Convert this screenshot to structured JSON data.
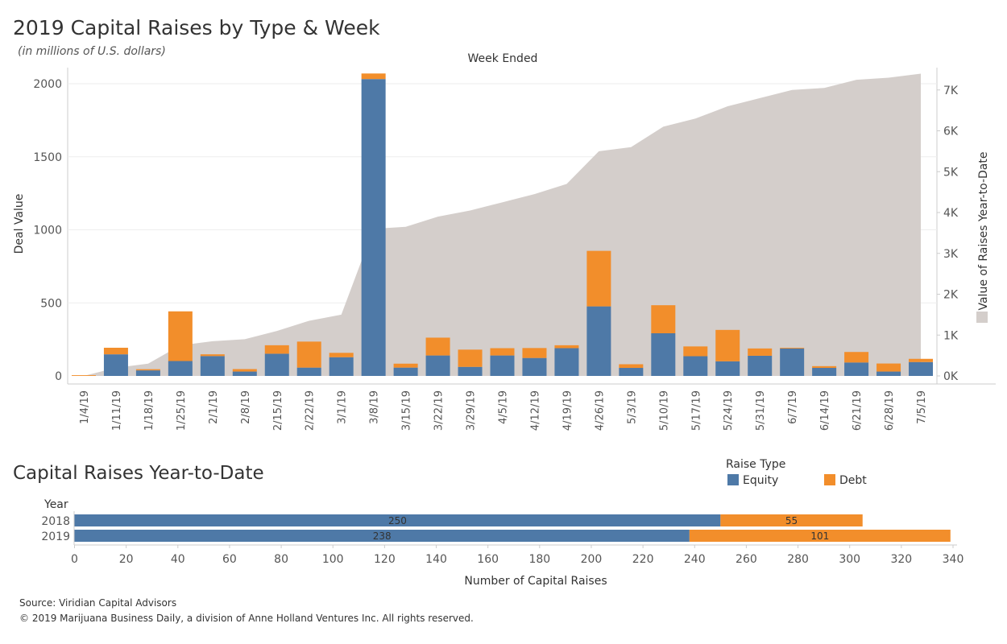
{
  "header": {
    "title": "2019 Capital Raises by Type & Week",
    "subtitle": "(in millions of U.S. dollars)",
    "section2_title": "Capital Raises Year-to-Date"
  },
  "footer": {
    "source": "Source: Viridian Capital Advisors",
    "copyright": "© 2019 Marijuana Business Daily, a division of Anne Holland Ventures Inc. All rights reserved."
  },
  "legend": {
    "title": "Raise Type",
    "items": [
      {
        "label": "Equity",
        "color": "#4e79a7"
      },
      {
        "label": "Debt",
        "color": "#f28e2b"
      }
    ]
  },
  "colors": {
    "equity": "#4e79a7",
    "debt": "#f28e2b",
    "ytd_area": "#d4cecb",
    "grid": "#eeeeee",
    "axis": "#cccccc"
  },
  "chart_data": [
    {
      "type": "bar",
      "stacked": true,
      "title": "2019 Capital Raises by Type & Week",
      "top_label": "Week Ended",
      "xlabel": "",
      "ylabel": "Deal Value",
      "y2label": "Value of Raises Year-to-Date",
      "ylim": [
        0,
        2100
      ],
      "y_ticks": [
        {
          "value": 0,
          "label": "0"
        },
        {
          "value": 500,
          "label": "500"
        },
        {
          "value": 1000,
          "label": "1000"
        },
        {
          "value": 1500,
          "label": "1500"
        },
        {
          "value": 2000,
          "label": "2000"
        }
      ],
      "y2lim": [
        0,
        7500
      ],
      "y2_ticks": [
        {
          "value": 0,
          "label": "0K"
        },
        {
          "value": 1000,
          "label": "1K"
        },
        {
          "value": 2000,
          "label": "2K"
        },
        {
          "value": 3000,
          "label": "3K"
        },
        {
          "value": 4000,
          "label": "4K"
        },
        {
          "value": 5000,
          "label": "5K"
        },
        {
          "value": 6000,
          "label": "6K"
        },
        {
          "value": 7000,
          "label": "7K"
        }
      ],
      "categories": [
        "1/4/19",
        "1/11/19",
        "1/18/19",
        "1/25/19",
        "2/1/19",
        "2/8/19",
        "2/15/19",
        "2/22/19",
        "3/1/19",
        "3/8/19",
        "3/15/19",
        "3/22/19",
        "3/29/19",
        "4/5/19",
        "4/12/19",
        "4/19/19",
        "4/26/19",
        "5/3/19",
        "5/10/19",
        "5/17/19",
        "5/24/19",
        "5/31/19",
        "6/7/19",
        "6/14/19",
        "6/21/19",
        "6/28/19",
        "7/5/19"
      ],
      "series": [
        {
          "name": "Equity",
          "color": "#4e79a7",
          "values": [
            0,
            148,
            38,
            102,
            136,
            30,
            152,
            57,
            128,
            2032,
            57,
            140,
            62,
            140,
            123,
            190,
            476,
            55,
            292,
            135,
            100,
            138,
            188,
            55,
            92,
            30,
            95
          ]
        },
        {
          "name": "Debt",
          "color": "#f28e2b",
          "values": [
            5,
            45,
            8,
            340,
            12,
            17,
            58,
            178,
            30,
            38,
            27,
            122,
            118,
            50,
            68,
            20,
            380,
            25,
            192,
            67,
            215,
            50,
            5,
            12,
            72,
            55,
            22
          ]
        },
        {
          "name": "Value of Raises Year-to-Date",
          "type": "area",
          "axis": "y2",
          "color": "#d4cecb",
          "values": [
            0,
            200,
            300,
            750,
            850,
            900,
            1100,
            1350,
            1500,
            3600,
            3650,
            3900,
            4050,
            4250,
            4450,
            4700,
            5500,
            5600,
            6100,
            6300,
            6600,
            6800,
            7000,
            7050,
            7250,
            7300,
            7400
          ]
        }
      ]
    },
    {
      "type": "bar",
      "orientation": "horizontal",
      "stacked": true,
      "title": "Capital Raises Year-to-Date",
      "xlabel": "Number of Capital Raises",
      "ylabel": "Year",
      "xlim": [
        0,
        340
      ],
      "x_ticks": [
        0,
        20,
        40,
        60,
        80,
        100,
        120,
        140,
        160,
        180,
        200,
        220,
        240,
        260,
        280,
        300,
        320,
        340
      ],
      "categories": [
        "2018",
        "2019"
      ],
      "series": [
        {
          "name": "Equity",
          "color": "#4e79a7",
          "values": [
            250,
            238
          ]
        },
        {
          "name": "Debt",
          "color": "#f28e2b",
          "values": [
            55,
            101
          ]
        }
      ]
    }
  ]
}
